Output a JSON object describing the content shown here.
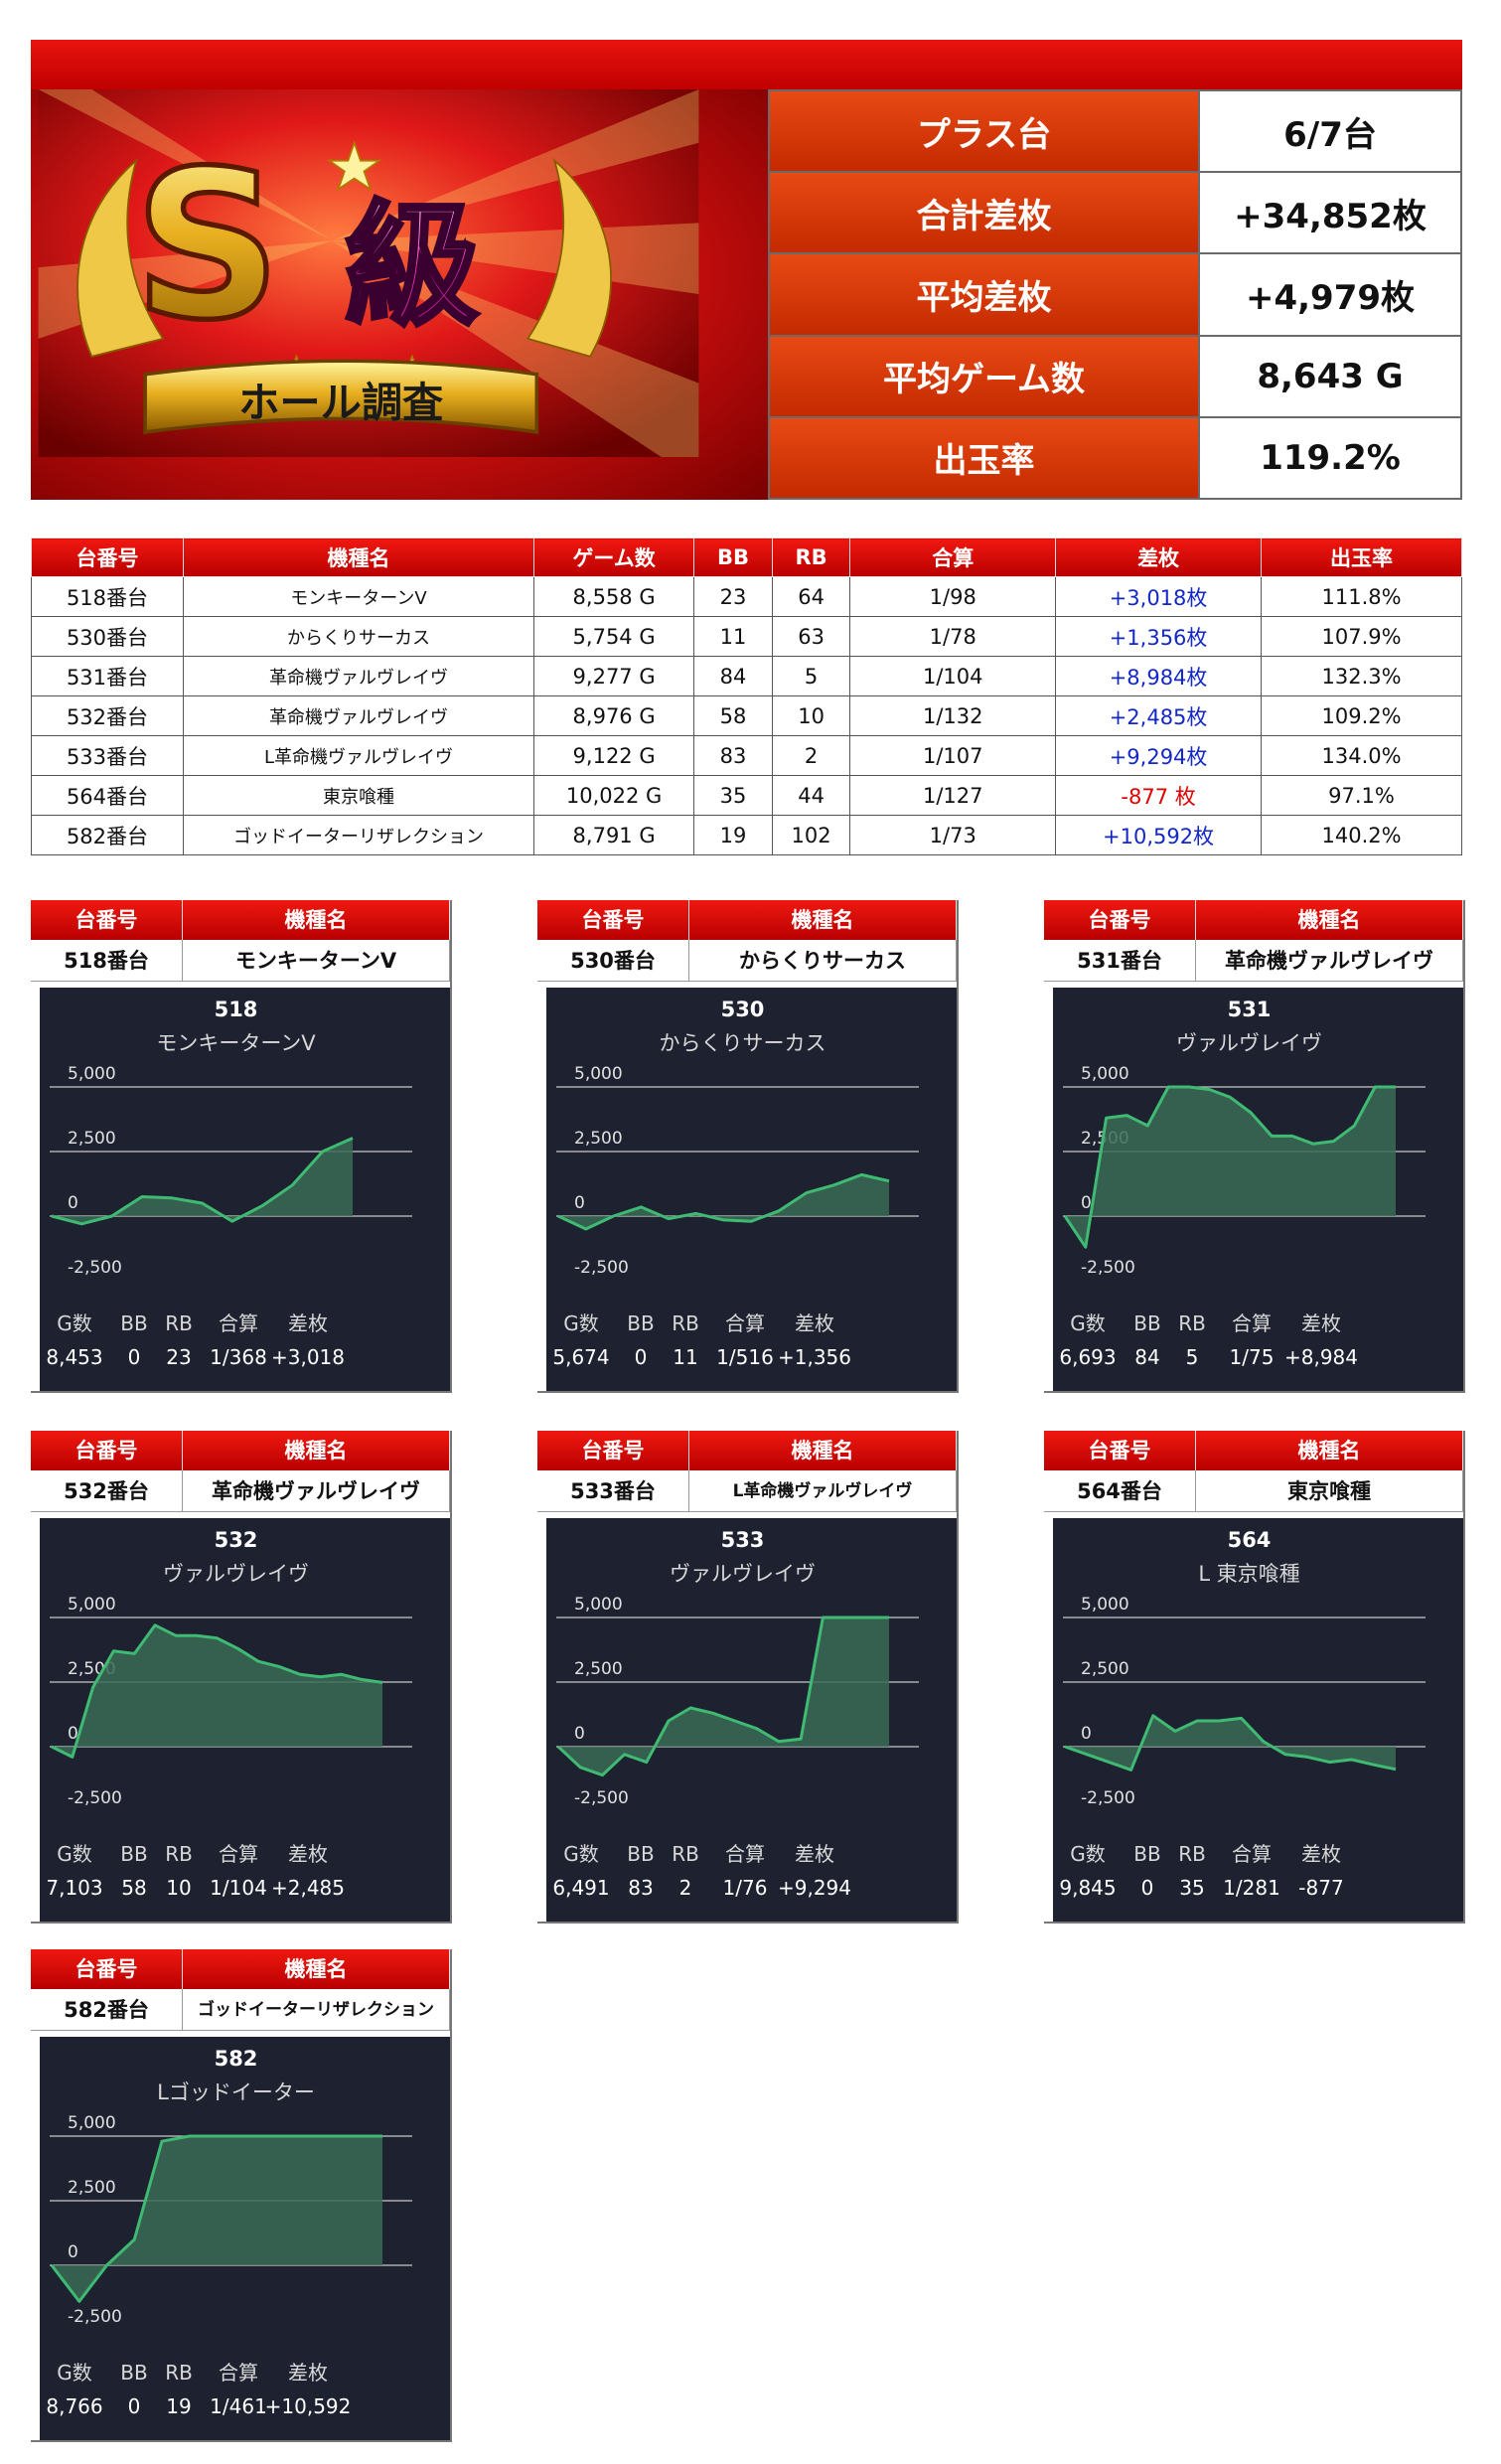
{
  "banner": {
    "logo_letter": "S",
    "logo_kanji": "級",
    "ribbon_text": "ホール調査"
  },
  "summary": [
    {
      "label": "プラス台",
      "value": "6/7台"
    },
    {
      "label": "合計差枚",
      "value": "+34,852枚"
    },
    {
      "label": "平均差枚",
      "value": "+4,979枚"
    },
    {
      "label": "平均ゲーム数",
      "value": "8,643 G"
    },
    {
      "label": "出玉率",
      "value": "119.2%"
    }
  ],
  "table": {
    "headers": [
      "台番号",
      "機種名",
      "ゲーム数",
      "BB",
      "RB",
      "合算",
      "差枚",
      "出玉率"
    ],
    "rows": [
      {
        "unit": "518番台",
        "model": "モンキーターンV",
        "games": "8,558 G",
        "bb": "23",
        "rb": "64",
        "combined": "1/98",
        "diff": "+3,018枚",
        "sign": "pos",
        "rate": "111.8%"
      },
      {
        "unit": "530番台",
        "model": "からくりサーカス",
        "games": "5,754 G",
        "bb": "11",
        "rb": "63",
        "combined": "1/78",
        "diff": "+1,356枚",
        "sign": "pos",
        "rate": "107.9%"
      },
      {
        "unit": "531番台",
        "model": "革命機ヴァルヴレイヴ",
        "games": "9,277 G",
        "bb": "84",
        "rb": "5",
        "combined": "1/104",
        "diff": "+8,984枚",
        "sign": "pos",
        "rate": "132.3%"
      },
      {
        "unit": "532番台",
        "model": "革命機ヴァルヴレイヴ",
        "games": "8,976 G",
        "bb": "58",
        "rb": "10",
        "combined": "1/132",
        "diff": "+2,485枚",
        "sign": "pos",
        "rate": "109.2%"
      },
      {
        "unit": "533番台",
        "model": "L革命機ヴァルヴレイヴ",
        "games": "9,122 G",
        "bb": "83",
        "rb": "2",
        "combined": "1/107",
        "diff": "+9,294枚",
        "sign": "pos",
        "rate": "134.0%"
      },
      {
        "unit": "564番台",
        "model": "東京喰種",
        "games": "10,022 G",
        "bb": "35",
        "rb": "44",
        "combined": "1/127",
        "diff": "-877 枚",
        "sign": "neg",
        "rate": "97.1%"
      },
      {
        "unit": "582番台",
        "model": "ゴッドイーターリザレクション",
        "games": "8,791 G",
        "bb": "19",
        "rb": "102",
        "combined": "1/73",
        "diff": "+10,592枚",
        "sign": "pos",
        "rate": "140.2%"
      }
    ]
  },
  "card_headers": {
    "unit": "台番号",
    "model": "機種名"
  },
  "stat_labels": [
    "G数",
    "BB",
    "RB",
    "合算",
    "差枚"
  ],
  "colors": {
    "line": "#3fba73",
    "fill": "#3a6b55",
    "panel": "#1e2230",
    "red": "#d00000",
    "blue": "#1428c8"
  },
  "chart_data": [
    {
      "type": "area",
      "unit": "518番台",
      "model": "モンキーターンV",
      "number": "518",
      "name": "モンキーターンV",
      "yticks": [
        "5,000",
        "2,500",
        "0",
        "-2,500"
      ],
      "ylim": [
        -2500,
        5000
      ],
      "stats": [
        "8,453",
        "0",
        "23",
        "1/368",
        "+3,018"
      ],
      "values": [
        0,
        -300,
        0,
        750,
        700,
        500,
        -200,
        400,
        1200,
        2500,
        3018
      ]
    },
    {
      "type": "area",
      "unit": "530番台",
      "model": "からくりサーカス",
      "number": "530",
      "name": "からくりサーカス",
      "yticks": [
        "5,000",
        "2,500",
        "0",
        "-2,500"
      ],
      "ylim": [
        -2500,
        5000
      ],
      "stats": [
        "5,674",
        "0",
        "11",
        "1/516",
        "+1,356"
      ],
      "values": [
        0,
        -500,
        0,
        350,
        -100,
        100,
        -150,
        -200,
        200,
        900,
        1200,
        1600,
        1356
      ]
    },
    {
      "type": "area",
      "unit": "531番台",
      "model": "革命機ヴァルヴレイヴ",
      "number": "531",
      "name": "ヴァルヴレイヴ",
      "yticks": [
        "5,000",
        "2,500",
        "0",
        "-2,500"
      ],
      "ylim": [
        -2500,
        5000
      ],
      "stats": [
        "6,693",
        "84",
        "5",
        "1/75",
        "+8,984"
      ],
      "values": [
        0,
        -1200,
        3800,
        3900,
        3500,
        5000,
        5000,
        4900,
        4600,
        4000,
        3100,
        3100,
        2800,
        2900,
        3500,
        5000,
        5000
      ]
    },
    {
      "type": "area",
      "unit": "532番台",
      "model": "革命機ヴァルヴレイヴ",
      "number": "532",
      "name": "ヴァルヴレイヴ",
      "yticks": [
        "5,000",
        "2,500",
        "0",
        "-2,500"
      ],
      "ylim": [
        -2500,
        5000
      ],
      "stats": [
        "7,103",
        "58",
        "10",
        "1/104",
        "+2,485"
      ],
      "values": [
        0,
        -400,
        2300,
        3700,
        3600,
        4700,
        4300,
        4300,
        4200,
        3800,
        3300,
        3100,
        2800,
        2700,
        2800,
        2600,
        2485
      ]
    },
    {
      "type": "area",
      "unit": "533番台",
      "model": "L革命機ヴァルヴレイヴ",
      "number": "533",
      "name": "ヴァルヴレイヴ",
      "yticks": [
        "5,000",
        "2,500",
        "0",
        "-2,500"
      ],
      "ylim": [
        -2500,
        5000
      ],
      "stats": [
        "6,491",
        "83",
        "2",
        "1/76",
        "+9,294"
      ],
      "values": [
        0,
        -800,
        -1100,
        -300,
        -600,
        1000,
        1500,
        1300,
        1000,
        700,
        200,
        300,
        5000,
        5000,
        5000,
        5000
      ]
    },
    {
      "type": "area",
      "unit": "564番台",
      "model": "東京喰種",
      "number": "564",
      "name": "L 東京喰種",
      "yticks": [
        "5,000",
        "2,500",
        "0",
        "-2,500"
      ],
      "ylim": [
        -2500,
        5000
      ],
      "stats": [
        "9,845",
        "0",
        "35",
        "1/281",
        "-877"
      ],
      "values": [
        0,
        -300,
        -600,
        -900,
        1200,
        600,
        1000,
        1000,
        1100,
        200,
        -300,
        -400,
        -600,
        -500,
        -700,
        -877
      ]
    },
    {
      "type": "area",
      "unit": "582番台",
      "model": "ゴッドイーターリザレクション",
      "number": "582",
      "name": "Lゴッドイーター",
      "yticks": [
        "5,000",
        "2,500",
        "0",
        "-2,500"
      ],
      "ylim": [
        -2500,
        5000
      ],
      "stats": [
        "8,766",
        "0",
        "19",
        "1/461",
        "+10,592"
      ],
      "values": [
        0,
        -1400,
        0,
        1000,
        4800,
        5000,
        5000,
        5000,
        5000,
        5000,
        5000,
        5000,
        5000
      ]
    }
  ]
}
